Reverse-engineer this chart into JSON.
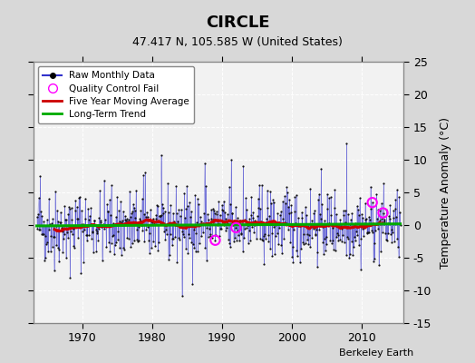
{
  "title": "CIRCLE",
  "subtitle": "47.417 N, 105.585 W (United States)",
  "ylabel": "Temperature Anomaly (°C)",
  "credit": "Berkeley Earth",
  "ylim": [
    -15,
    25
  ],
  "yticks": [
    -15,
    -10,
    -5,
    0,
    5,
    10,
    15,
    20,
    25
  ],
  "xlim_year": [
    1963,
    2016
  ],
  "xticks_years": [
    1970,
    1980,
    1990,
    2000,
    2010
  ],
  "background_color": "#d8d8d8",
  "plot_bg_color": "#f2f2f2",
  "raw_line_color": "#3333cc",
  "raw_dot_color": "#111111",
  "moving_avg_color": "#cc0000",
  "trend_color": "#00aa00",
  "qc_fail_color": "#ff00ff",
  "seed": 42,
  "n_months": 612,
  "start_year": 1963.5
}
